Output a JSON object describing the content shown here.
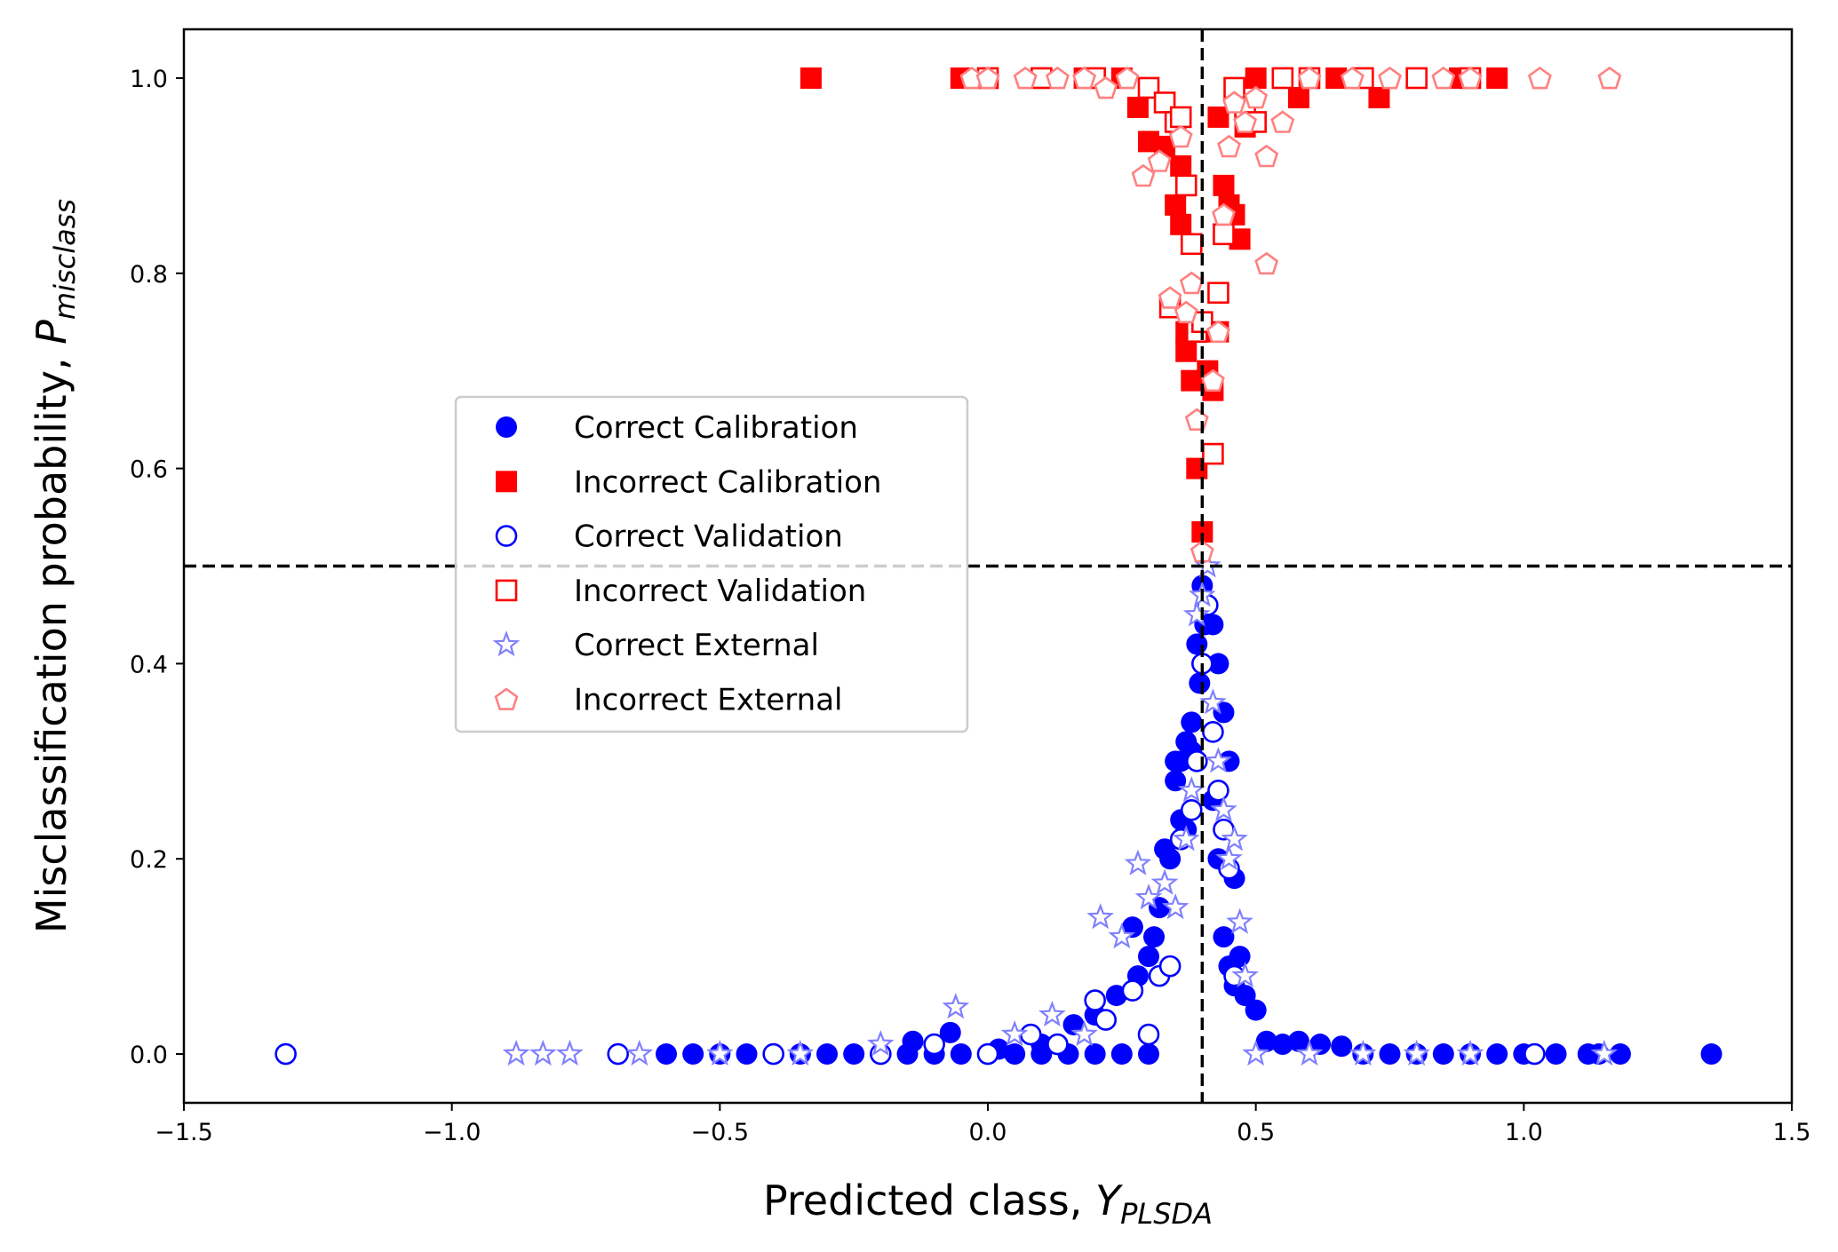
{
  "chart_data": {
    "type": "scatter",
    "title": "",
    "xlabel": {
      "main": "Predicted class, ",
      "symbol": "Y",
      "sub": "PLSDA"
    },
    "ylabel": {
      "main": "Misclassification probability, ",
      "symbol": "P",
      "sub": "misclass"
    },
    "xlim": [
      -1.5,
      1.5
    ],
    "ylim": [
      -0.05,
      1.05
    ],
    "xticks": [
      -1.5,
      -1.0,
      -0.5,
      0.0,
      0.5,
      1.0,
      1.5
    ],
    "xtick_labels": [
      "−1.5",
      "−1.0",
      "−0.5",
      "0.0",
      "0.5",
      "1.0",
      "1.5"
    ],
    "yticks": [
      0.0,
      0.2,
      0.4,
      0.6,
      0.8,
      1.0
    ],
    "ytick_labels": [
      "0.0",
      "0.2",
      "0.4",
      "0.6",
      "0.8",
      "1.0"
    ],
    "threshold_lines": {
      "vertical_x": 0.4,
      "horizontal_y": 0.5,
      "style": "dashed",
      "color": "#000000"
    },
    "grid": false,
    "legend_position": "center-left",
    "series": [
      {
        "name": "Correct Calibration",
        "marker": "circle-filled",
        "color": "#0000ff",
        "x": [
          -0.6,
          -0.55,
          -0.5,
          -0.45,
          -0.4,
          -0.35,
          -0.3,
          -0.25,
          -0.2,
          -0.15,
          -0.1,
          -0.05,
          0.0,
          0.05,
          0.1,
          0.15,
          0.2,
          0.25,
          0.3,
          -0.14,
          -0.07,
          0.02,
          0.1,
          0.16,
          0.2,
          0.24,
          0.28,
          0.3,
          0.32,
          0.34,
          0.35,
          0.36,
          0.37,
          0.38,
          0.39,
          0.4,
          0.41,
          0.42,
          0.43,
          0.44,
          0.45,
          0.46,
          0.47,
          0.48,
          0.5,
          0.52,
          0.55,
          0.58,
          0.62,
          0.66,
          0.7,
          0.75,
          0.8,
          0.85,
          0.9,
          0.95,
          1.0,
          1.06,
          1.12,
          1.14,
          1.18,
          1.35,
          0.27,
          0.31,
          0.33,
          0.35,
          0.36,
          0.37,
          0.38,
          0.395,
          0.405,
          0.42,
          0.43,
          0.44,
          0.45,
          0.46
        ],
        "y": [
          0,
          0,
          0,
          0,
          0,
          0,
          0,
          0,
          0,
          0,
          0,
          0,
          0,
          0,
          0,
          0,
          0,
          0,
          0,
          0.013,
          0.022,
          0.005,
          0.01,
          0.03,
          0.04,
          0.06,
          0.08,
          0.1,
          0.15,
          0.2,
          0.28,
          0.3,
          0.32,
          0.34,
          0.42,
          0.48,
          0.46,
          0.44,
          0.4,
          0.35,
          0.3,
          0.18,
          0.1,
          0.06,
          0.045,
          0.013,
          0.01,
          0.013,
          0.01,
          0.008,
          0,
          0,
          0,
          0,
          0,
          0,
          0,
          0,
          0,
          0,
          0,
          0,
          0.13,
          0.12,
          0.21,
          0.3,
          0.24,
          0.23,
          0.31,
          0.38,
          0.44,
          0.26,
          0.2,
          0.12,
          0.09,
          0.07
        ]
      },
      {
        "name": "Incorrect Calibration",
        "marker": "square-filled",
        "color": "#ff0000",
        "x": [
          -0.33,
          -0.05,
          0.0,
          0.1,
          0.18,
          0.25,
          0.28,
          0.3,
          0.33,
          0.35,
          0.36,
          0.37,
          0.38,
          0.385,
          0.39,
          0.4,
          0.41,
          0.42,
          0.43,
          0.44,
          0.45,
          0.46,
          0.47,
          0.48,
          0.5,
          0.55,
          0.58,
          0.6,
          0.65,
          0.7,
          0.73,
          0.8,
          0.88,
          0.95,
          0.36,
          0.37,
          0.43
        ],
        "y": [
          1.0,
          1.0,
          1.0,
          1.0,
          1.0,
          1.0,
          0.97,
          0.935,
          0.93,
          0.87,
          0.85,
          0.72,
          0.69,
          0.75,
          0.6,
          0.535,
          0.7,
          0.68,
          0.74,
          0.89,
          0.87,
          0.86,
          0.835,
          0.95,
          1.0,
          1.0,
          0.98,
          1.0,
          1.0,
          1.0,
          0.98,
          1.0,
          1.0,
          1.0,
          0.91,
          0.74,
          0.96
        ]
      },
      {
        "name": "Correct Validation",
        "marker": "circle-open",
        "color": "#0000ff",
        "x": [
          -1.31,
          -0.69,
          -0.4,
          -0.2,
          -0.1,
          0.0,
          0.08,
          0.13,
          0.2,
          0.22,
          0.27,
          0.3,
          0.32,
          0.34,
          0.36,
          0.38,
          0.39,
          0.4,
          0.41,
          0.42,
          0.43,
          0.44,
          0.45,
          0.46,
          1.02
        ],
        "y": [
          0.0,
          0.0,
          0.0,
          0.0,
          0.01,
          0.0,
          0.02,
          0.01,
          0.055,
          0.035,
          0.065,
          0.02,
          0.08,
          0.09,
          0.22,
          0.25,
          0.3,
          0.4,
          0.46,
          0.33,
          0.27,
          0.23,
          0.19,
          0.08,
          0.0
        ]
      },
      {
        "name": "Incorrect Validation",
        "marker": "square-open",
        "color": "#ff0000",
        "x": [
          0.0,
          0.1,
          0.2,
          0.3,
          0.33,
          0.34,
          0.35,
          0.36,
          0.37,
          0.38,
          0.39,
          0.4,
          0.42,
          0.43,
          0.44,
          0.46,
          0.48,
          0.5,
          0.55,
          0.6,
          0.7,
          0.8,
          0.9
        ],
        "y": [
          1.0,
          1.0,
          1.0,
          0.99,
          0.975,
          0.765,
          0.955,
          0.96,
          0.89,
          0.83,
          0.74,
          0.75,
          0.615,
          0.78,
          0.84,
          0.99,
          0.97,
          0.955,
          1.0,
          1.0,
          1.0,
          1.0,
          1.0
        ]
      },
      {
        "name": "Correct External",
        "marker": "star-open",
        "color": "#8080ff",
        "x": [
          -0.88,
          -0.83,
          -0.78,
          -0.65,
          -0.5,
          -0.35,
          -0.2,
          -0.06,
          0.05,
          0.12,
          0.18,
          0.21,
          0.25,
          0.28,
          0.3,
          0.33,
          0.35,
          0.37,
          0.38,
          0.39,
          0.4,
          0.41,
          0.42,
          0.43,
          0.44,
          0.45,
          0.46,
          0.47,
          0.48,
          0.5,
          0.6,
          0.7,
          0.8,
          0.9,
          1.15
        ],
        "y": [
          0.0,
          0.0,
          0.0,
          0.0,
          0.0,
          0.0,
          0.01,
          0.048,
          0.02,
          0.04,
          0.02,
          0.14,
          0.12,
          0.195,
          0.16,
          0.175,
          0.15,
          0.22,
          0.27,
          0.45,
          0.47,
          0.5,
          0.36,
          0.3,
          0.25,
          0.2,
          0.22,
          0.135,
          0.08,
          0.0,
          0.0,
          0.0,
          0.0,
          0.0,
          0.0
        ]
      },
      {
        "name": "Incorrect External",
        "marker": "pentagon-open",
        "color": "#ff8080",
        "x": [
          -0.03,
          0.0,
          0.07,
          0.13,
          0.18,
          0.22,
          0.26,
          0.29,
          0.32,
          0.34,
          0.36,
          0.38,
          0.39,
          0.4,
          0.42,
          0.43,
          0.44,
          0.46,
          0.48,
          0.5,
          0.52,
          0.55,
          0.6,
          0.68,
          0.75,
          0.85,
          0.9,
          1.03,
          1.16,
          0.37,
          0.45,
          0.52
        ],
        "y": [
          1.0,
          1.0,
          1.0,
          1.0,
          1.0,
          0.99,
          1.0,
          0.9,
          0.915,
          0.775,
          0.94,
          0.79,
          0.65,
          0.515,
          0.69,
          0.74,
          0.86,
          0.975,
          0.955,
          0.98,
          0.81,
          0.955,
          1.0,
          1.0,
          1.0,
          1.0,
          1.0,
          1.0,
          1.0,
          0.76,
          0.93,
          0.92
        ]
      }
    ]
  }
}
